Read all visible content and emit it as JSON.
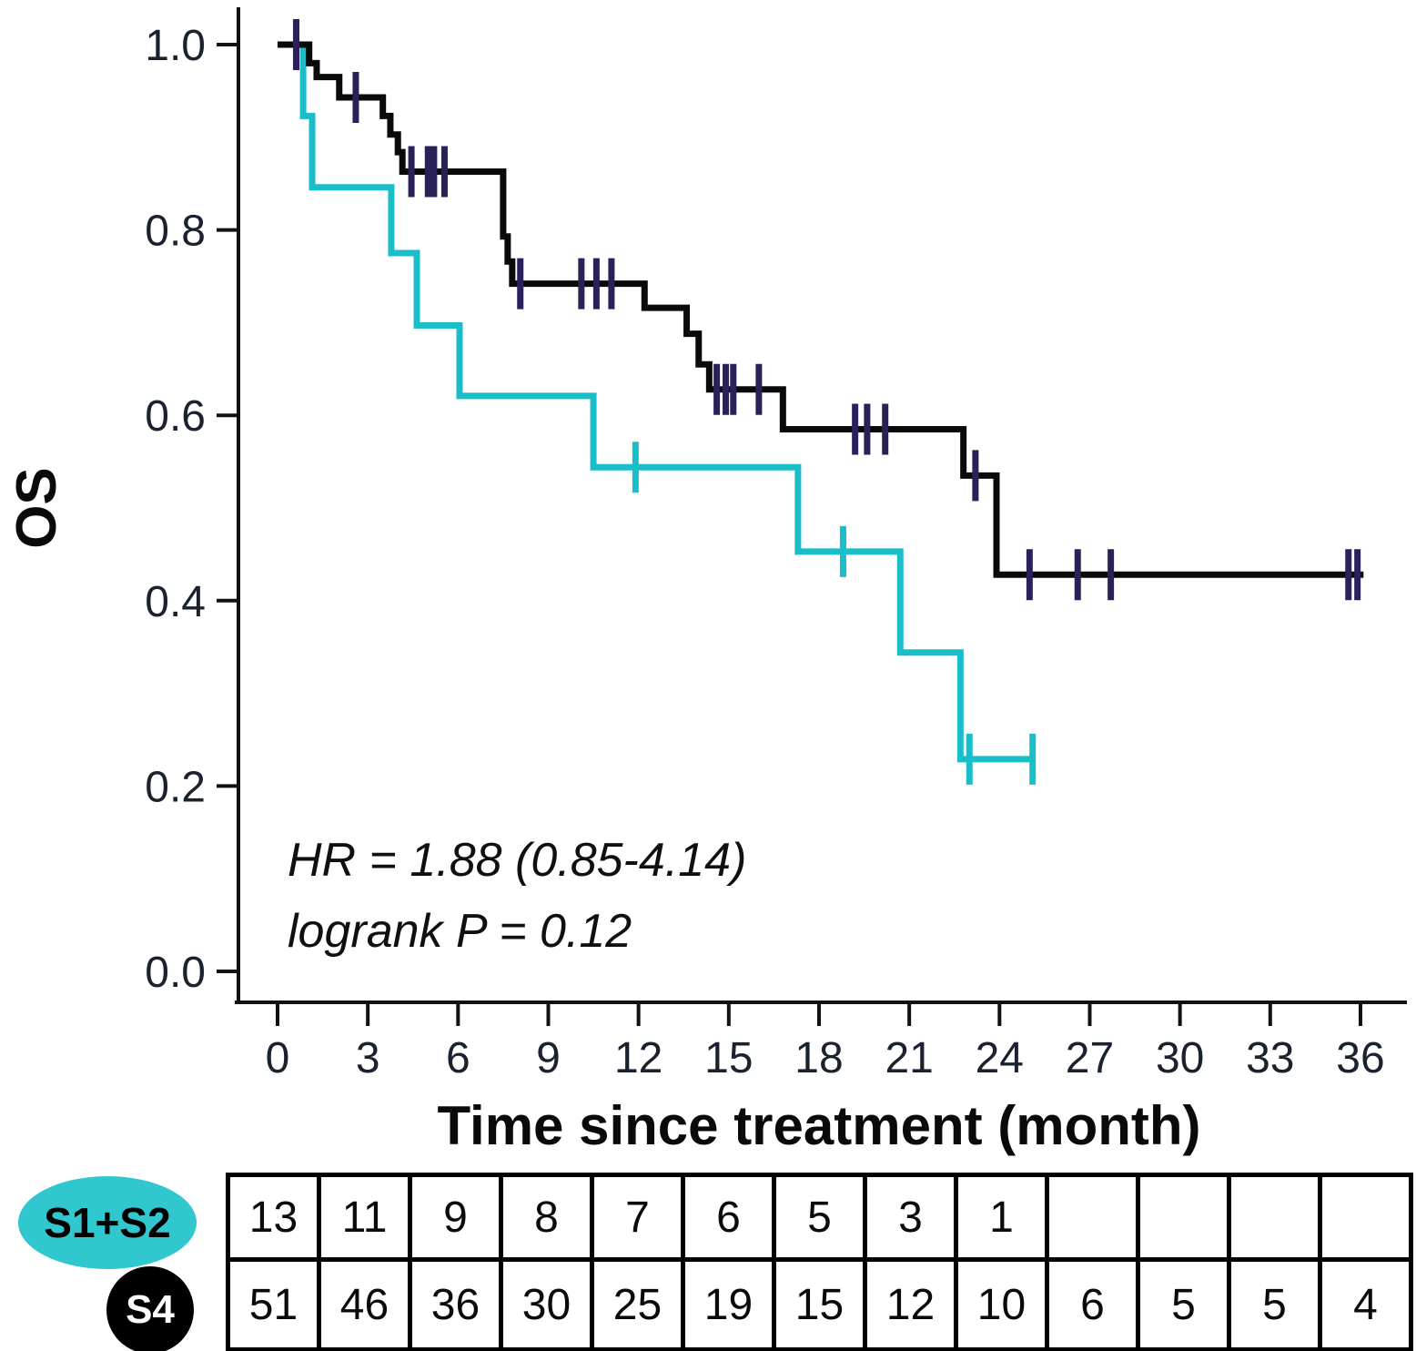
{
  "axes": {
    "y_label": "OS",
    "x_label": "Time since treatment (month)",
    "y_ticks": [
      {
        "value": 0.0,
        "label": "0.0"
      },
      {
        "value": 0.2,
        "label": "0.2"
      },
      {
        "value": 0.4,
        "label": "0.4"
      },
      {
        "value": 0.6,
        "label": "0.6"
      },
      {
        "value": 0.8,
        "label": "0.8"
      },
      {
        "value": 1.0,
        "label": "1.0"
      }
    ],
    "x_ticks": [
      {
        "value": 0,
        "label": "0"
      },
      {
        "value": 3,
        "label": "3"
      },
      {
        "value": 6,
        "label": "6"
      },
      {
        "value": 9,
        "label": "9"
      },
      {
        "value": 12,
        "label": "12"
      },
      {
        "value": 15,
        "label": "15"
      },
      {
        "value": 18,
        "label": "18"
      },
      {
        "value": 21,
        "label": "21"
      },
      {
        "value": 24,
        "label": "24"
      },
      {
        "value": 27,
        "label": "27"
      },
      {
        "value": 30,
        "label": "30"
      },
      {
        "value": 33,
        "label": "33"
      },
      {
        "value": 36,
        "label": "36"
      }
    ]
  },
  "annotation": {
    "hr": "HR = 1.88 (0.85-4.14)",
    "logrank": "logrank P = 0.12"
  },
  "chart_data": {
    "type": "line",
    "subtype": "kaplan-meier-step-curve",
    "title": "",
    "xlabel": "Time since treatment (month)",
    "ylabel": "OS",
    "xlim": [
      0,
      37.5
    ],
    "ylim": [
      0.0,
      1.0
    ],
    "x_tick_interval": 3,
    "y_tick_interval": 0.2,
    "grid": false,
    "legend_position": "left-of-risk-table",
    "annotations": [
      "HR = 1.88 (0.85-4.14)",
      "logrank P = 0.12"
    ],
    "series": [
      {
        "name": "S1+S2",
        "color": "#1ABEC8",
        "censor_color": "#1ABEC8",
        "steps": [
          [
            0,
            1.0
          ],
          [
            0.85,
            0.923
          ],
          [
            1.15,
            0.846
          ],
          [
            3.78,
            0.775
          ],
          [
            4.63,
            0.697
          ],
          [
            6.05,
            0.621
          ],
          [
            10.5,
            0.544
          ],
          [
            17.3,
            0.453
          ],
          [
            20.7,
            0.344
          ],
          [
            22.7,
            0.229
          ]
        ],
        "end_month": 25.2,
        "censor_months": [
          11.9,
          18.8,
          23.0,
          25.1
        ]
      },
      {
        "name": "S4",
        "color": "#0a0a0a",
        "censor_color": "#2b2058",
        "steps": [
          [
            0,
            1.0
          ],
          [
            1.05,
            0.98
          ],
          [
            1.3,
            0.965
          ],
          [
            2.05,
            0.943
          ],
          [
            3.5,
            0.923
          ],
          [
            3.75,
            0.903
          ],
          [
            4.0,
            0.884
          ],
          [
            4.15,
            0.863
          ],
          [
            7.5,
            0.793
          ],
          [
            7.65,
            0.766
          ],
          [
            7.8,
            0.742
          ],
          [
            12.2,
            0.716
          ],
          [
            13.6,
            0.688
          ],
          [
            14.0,
            0.655
          ],
          [
            14.35,
            0.628
          ],
          [
            16.8,
            0.585
          ],
          [
            22.8,
            0.535
          ],
          [
            23.9,
            0.428
          ]
        ],
        "end_month": 36.1,
        "censor_months": [
          0.62,
          2.6,
          4.45,
          5.0,
          5.2,
          5.55,
          8.07,
          10.1,
          10.6,
          11.1,
          14.6,
          14.9,
          15.15,
          16.0,
          19.2,
          19.6,
          20.2,
          23.2,
          25.0,
          26.6,
          27.7,
          35.6,
          35.9
        ]
      }
    ]
  },
  "risk_table": {
    "columns_months": [
      0,
      3,
      6,
      9,
      12,
      15,
      18,
      21,
      24,
      27,
      30,
      33,
      36
    ],
    "rows": [
      {
        "label": "S1+S2",
        "badge_shape": "ellipse",
        "badge_color": "#30C7CF",
        "label_color": "#000000",
        "counts": [
          "13",
          "11",
          "9",
          "8",
          "7",
          "6",
          "5",
          "3",
          "1",
          "",
          "",
          "",
          ""
        ]
      },
      {
        "label": "S4",
        "badge_shape": "circle",
        "badge_color": "#000000",
        "label_color": "#ffffff",
        "counts": [
          "51",
          "46",
          "36",
          "30",
          "25",
          "19",
          "15",
          "12",
          "10",
          "6",
          "5",
          "5",
          "4"
        ]
      }
    ]
  },
  "colors": {
    "axis": "#111111",
    "tick_label": "#1a2230",
    "curve_s1s2": "#1ABEC8",
    "curve_s4": "#0a0a0a"
  }
}
